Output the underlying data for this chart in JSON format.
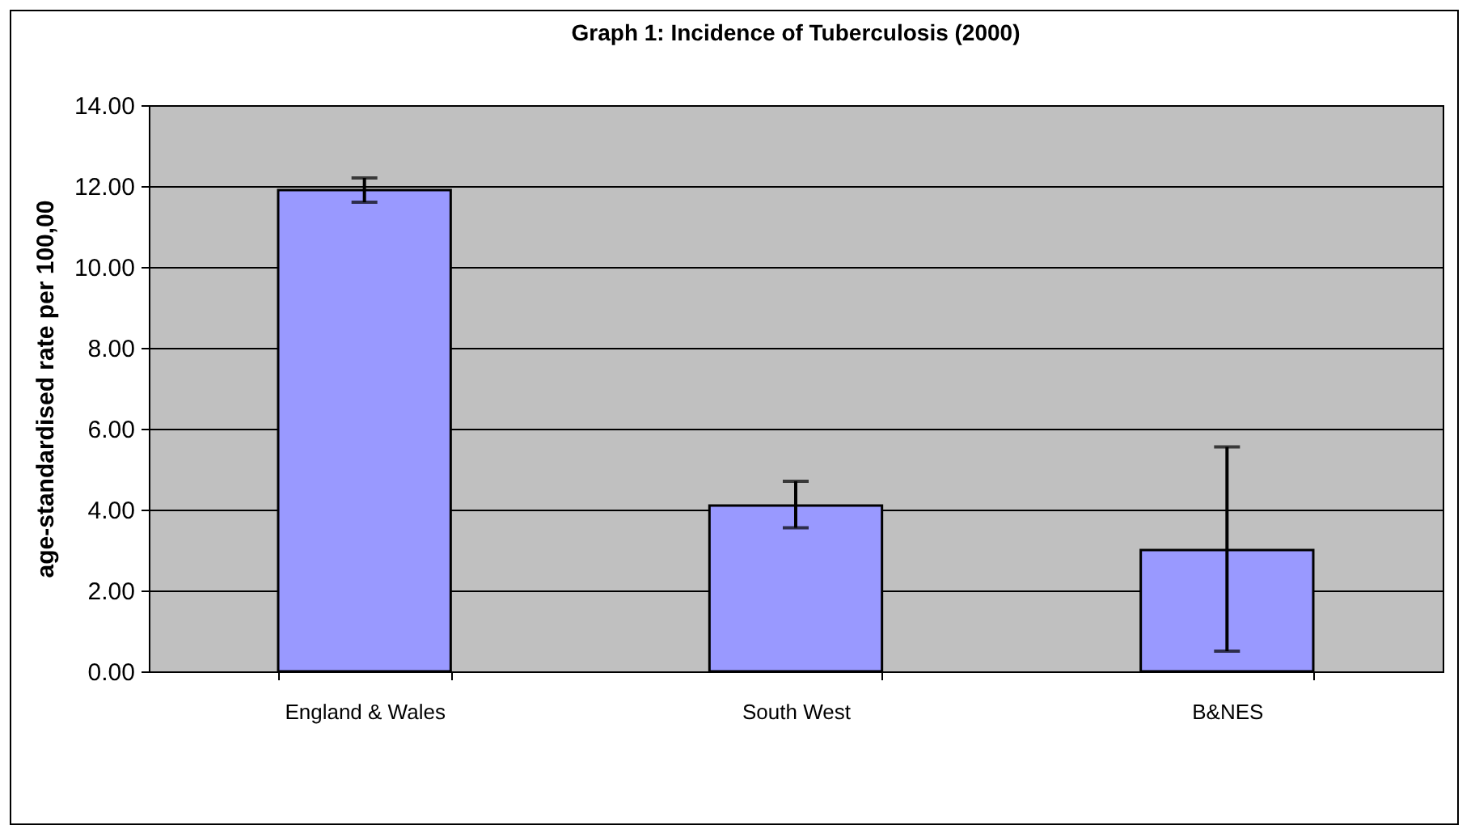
{
  "chart_data": {
    "type": "bar",
    "title": "Graph 1: Incidence of Tuberculosis (2000)",
    "ylabel": "age-standardised rate per 100,00",
    "categories": [
      "England & Wales",
      "South West",
      "B&NES"
    ],
    "values": [
      11.9,
      4.1,
      3.0
    ],
    "errors": [
      [
        11.6,
        12.2
      ],
      [
        3.55,
        4.7
      ],
      [
        0.5,
        5.55
      ]
    ],
    "color": "#9999ff",
    "ylim": [
      0,
      14
    ],
    "yticks": [
      {
        "value": 0,
        "label": "0.00"
      },
      {
        "value": 2,
        "label": "2.00"
      },
      {
        "value": 4,
        "label": "4.00"
      },
      {
        "value": 6,
        "label": "6.00"
      },
      {
        "value": 8,
        "label": "8.00"
      },
      {
        "value": 10,
        "label": "10.00"
      },
      {
        "value": 12,
        "label": "12.00"
      },
      {
        "value": 14,
        "label": "14.00"
      }
    ],
    "grid": "y"
  }
}
